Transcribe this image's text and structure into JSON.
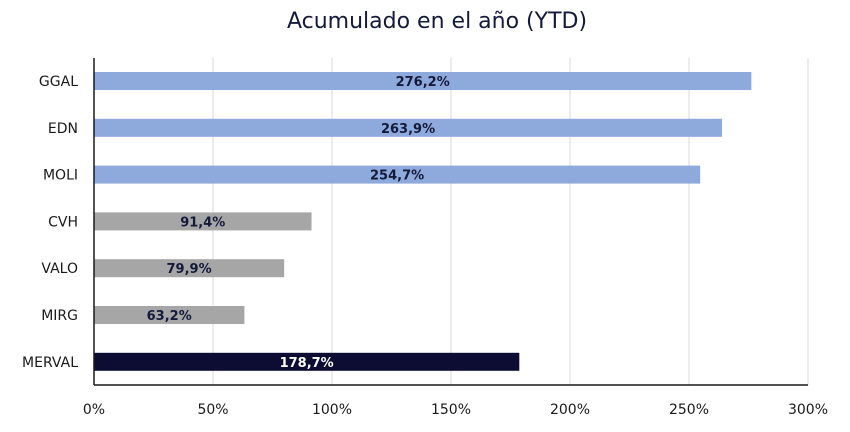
{
  "chart_data": {
    "type": "bar",
    "orientation": "horizontal",
    "title": "Acumulado en el año (YTD)",
    "xlabel": "",
    "ylabel": "",
    "categories": [
      "GGAL",
      "EDN",
      "MOLI",
      "CVH",
      "VALO",
      "MIRG",
      "MERVAL"
    ],
    "values": [
      276.2,
      263.9,
      254.7,
      91.4,
      79.9,
      63.2,
      178.7
    ],
    "data_labels": [
      "276,2%",
      "263,9%",
      "254,7%",
      "91,4%",
      "79,9%",
      "63,2%",
      "178,7%"
    ],
    "bar_colors": [
      "#8ea9db",
      "#8ea9db",
      "#8ea9db",
      "#a6a6a6",
      "#a6a6a6",
      "#a6a6a6",
      "#0d0d33"
    ],
    "label_colors": [
      "#141a3a",
      "#141a3a",
      "#141a3a",
      "#141a3a",
      "#141a3a",
      "#141a3a",
      "#ffffff"
    ],
    "xlim": [
      0,
      300
    ],
    "x_ticks": [
      0,
      50,
      100,
      150,
      200,
      250,
      300
    ],
    "x_tick_labels": [
      "0%",
      "50%",
      "100%",
      "150%",
      "200%",
      "250%",
      "300%"
    ],
    "grid": "vertical",
    "legend": "none"
  }
}
